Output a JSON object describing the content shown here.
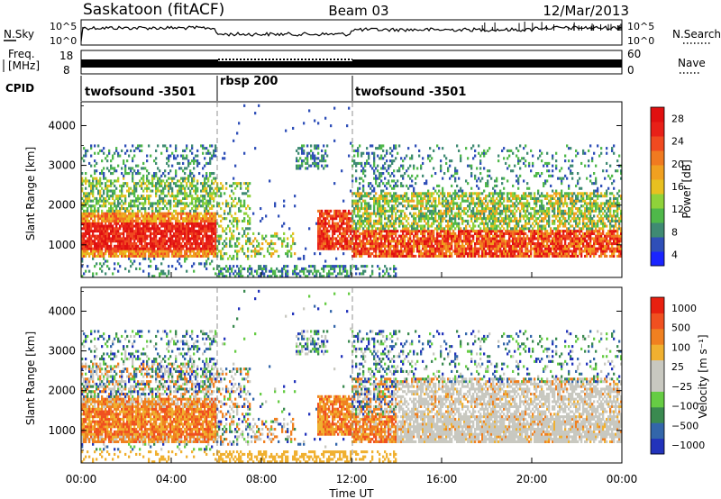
{
  "header": {
    "station": "Saskatoon (fitACF)",
    "beam": "Beam 03",
    "date": "12/Mar/2013"
  },
  "sky_panel": {
    "left_label": "N.Sky",
    "right_label": "N.Search",
    "tick_top": "10^5",
    "tick_bottom": "10^0",
    "right_tick_top": "10^5",
    "right_tick_bottom": "10^0"
  },
  "freq_panel": {
    "left_label_1": "Freq.",
    "left_label_2": "[MHz]",
    "left_ticks": [
      "18",
      "8"
    ],
    "right_ticks": [
      "60",
      "0"
    ],
    "right_label": "Nave"
  },
  "cpid": {
    "label": "CPID",
    "segments": [
      {
        "name": "twofsound -3501",
        "start": 0,
        "end": 6
      },
      {
        "name": "rbsp 200",
        "start": 6,
        "end": 12
      },
      {
        "name": "twofsound -3501",
        "start": 12,
        "end": 24
      }
    ]
  },
  "chart_data": [
    {
      "type": "heatmap",
      "title": "",
      "xlabel": "Time UT",
      "ylabel": "Slant Range [km]",
      "xlim": [
        0,
        24
      ],
      "ylim": [
        180,
        4600
      ],
      "y_ticks": [
        "1000",
        "2000",
        "3000",
        "4000"
      ],
      "x_ticks": [
        "00:00",
        "04:00",
        "08:00",
        "12:00",
        "16:00",
        "20:00",
        "00:00"
      ],
      "colorbar": {
        "label": "Power [dB]",
        "ticks": [
          "4",
          "8",
          "12",
          "16",
          "20",
          "24",
          "28"
        ],
        "colors": [
          "#1a24ff",
          "#2f4fb8",
          "#3f8a73",
          "#4fb84a",
          "#8fd23a",
          "#e8c020",
          "#f0a020",
          "#f07a20",
          "#f04a20",
          "#e82018",
          "#e01010"
        ]
      }
    },
    {
      "type": "heatmap",
      "title": "",
      "xlabel": "Time UT",
      "ylabel": "Slant Range [km]",
      "xlim": [
        0,
        24
      ],
      "ylim": [
        180,
        4600
      ],
      "y_ticks": [
        "1000",
        "2000",
        "3000",
        "4000"
      ],
      "x_ticks": [
        "00:00",
        "04:00",
        "08:00",
        "12:00",
        "16:00",
        "20:00",
        "00:00"
      ],
      "colorbar": {
        "label": "Velocity [m s⁻¹]",
        "ticks": [
          "1000",
          "500",
          "100",
          "25",
          "−25",
          "−100",
          "−500",
          "−1000"
        ],
        "colors": [
          "#2233bb",
          "#3366aa",
          "#3a8a50",
          "#66cc44",
          "#c8c8c0",
          "#c8c8c0",
          "#f0b030",
          "#f08020",
          "#f05020",
          "#e82010"
        ]
      }
    }
  ]
}
